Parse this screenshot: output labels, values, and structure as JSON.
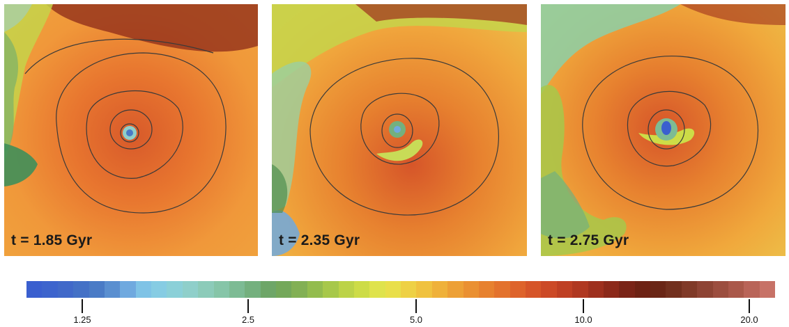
{
  "panels": [
    {
      "time_label": "t = 1.85 Gyr"
    },
    {
      "time_label": "t = 2.35 Gyr"
    },
    {
      "time_label": "t = 2.75 Gyr"
    }
  ],
  "colorbar": {
    "colors": [
      "#3a5fcf",
      "#3d64cd",
      "#4169c9",
      "#4471c6",
      "#4a7bc6",
      "#5a8fd0",
      "#6fa9df",
      "#7fc3e6",
      "#86cce3",
      "#8bd0d8",
      "#8fcfca",
      "#8ccbb9",
      "#86c5a8",
      "#7dbb94",
      "#74b07e",
      "#6ea668",
      "#74a85a",
      "#82b054",
      "#93bc4e",
      "#a7c84a",
      "#bcd348",
      "#cddc47",
      "#dfe34c",
      "#e9df4a",
      "#eed145",
      "#f0c23f",
      "#efb13a",
      "#eda036",
      "#ea9032",
      "#e7812f",
      "#e3722d",
      "#de632b",
      "#d65529",
      "#cc4a27",
      "#bf4024",
      "#b03821",
      "#9e301e",
      "#8c291a",
      "#7a2417",
      "#6d2214",
      "#6a2616",
      "#72301e",
      "#803a28",
      "#8e4434",
      "#9c4e3f",
      "#aa584a",
      "#b96458",
      "#c77267"
    ],
    "ticks": [
      "1.25",
      "2.5",
      "5.0",
      "10.0",
      "20.0"
    ]
  }
}
